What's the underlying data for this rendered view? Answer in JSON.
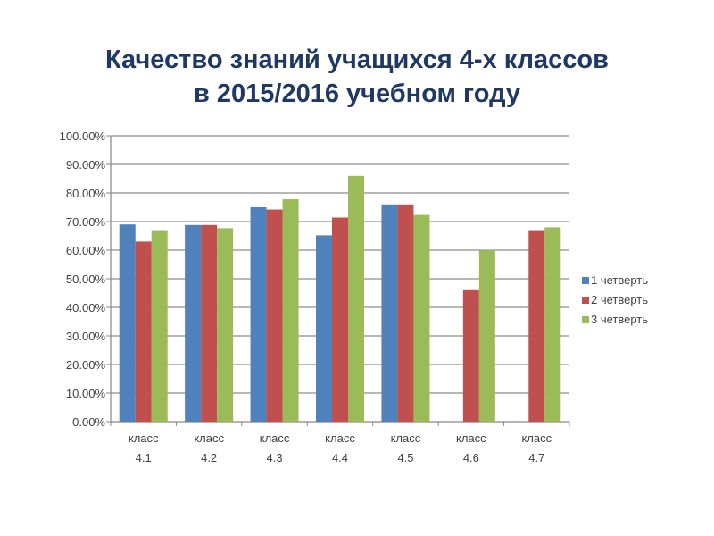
{
  "slide": {
    "title_line1": "Качество знаний учащихся 4-х классов",
    "title_line2": "в 2015/2016 учебном году"
  },
  "chart_data": {
    "type": "bar",
    "categories": [
      [
        "класс",
        "4.1"
      ],
      [
        "класс",
        "4.2"
      ],
      [
        "класс",
        "4.3"
      ],
      [
        "класс",
        "4.4"
      ],
      [
        "класс",
        "4.5"
      ],
      [
        "класс",
        "4.6"
      ],
      [
        "класс",
        "4.7"
      ]
    ],
    "series": [
      {
        "name": "1 четверть",
        "color": "#4f81bd",
        "values": [
          69,
          68.8,
          75,
          65.2,
          76,
          null,
          null
        ]
      },
      {
        "name": "2 четверть",
        "color": "#c0504d",
        "values": [
          63,
          68.8,
          74.2,
          71.4,
          76,
          46,
          66.7
        ]
      },
      {
        "name": "3 четверть",
        "color": "#9bbb59",
        "values": [
          66.7,
          67.7,
          77.8,
          86,
          72.3,
          60,
          68
        ]
      }
    ],
    "ylim": [
      0,
      100
    ],
    "yticks": [
      "0.00%",
      "10.00%",
      "20.00%",
      "30.00%",
      "40.00%",
      "50.00%",
      "60.00%",
      "70.00%",
      "80.00%",
      "90.00%",
      "100.00%"
    ],
    "grid": true,
    "legend_position": "right"
  }
}
